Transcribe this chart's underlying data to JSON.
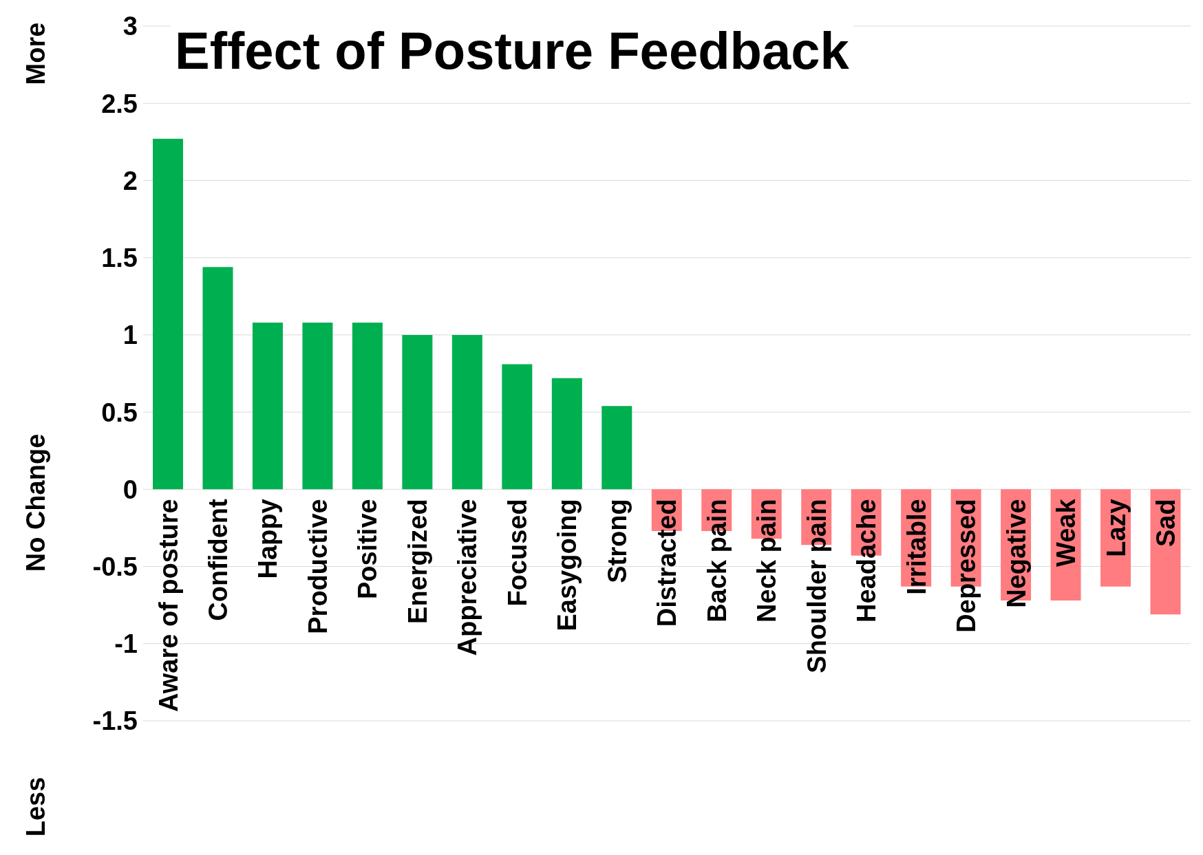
{
  "chart_data": {
    "type": "bar",
    "title": "Effect of Posture Feedback",
    "categories": [
      "Aware of posture",
      "Confident",
      "Happy",
      "Productive",
      "Positive",
      "Energized",
      "Appreciative",
      "Focused",
      "Easygoing",
      "Strong",
      "Distracted",
      "Back pain",
      "Neck pain",
      "Shoulder pain",
      "Headache",
      "Irritable",
      "Depressed",
      "Negative",
      "Weak",
      "Lazy",
      "Sad"
    ],
    "values": [
      2.27,
      1.44,
      1.08,
      1.08,
      1.08,
      1.0,
      1.0,
      0.81,
      0.72,
      0.54,
      -0.27,
      -0.27,
      -0.32,
      -0.36,
      -0.43,
      -0.63,
      -0.63,
      -0.72,
      -0.72,
      -0.63,
      -0.81
    ],
    "colors": [
      "#00b050",
      "#00b050",
      "#00b050",
      "#00b050",
      "#00b050",
      "#00b050",
      "#00b050",
      "#00b050",
      "#00b050",
      "#00b050",
      "#ff7c80",
      "#ff7c80",
      "#ff7c80",
      "#ff7c80",
      "#ff7c80",
      "#ff7c80",
      "#ff7c80",
      "#ff7c80",
      "#ff7c80",
      "#ff7c80",
      "#ff7c80"
    ],
    "ylim": [
      -1.5,
      3
    ],
    "yticks": [
      -1.5,
      -1,
      -0.5,
      0,
      0.5,
      1,
      1.5,
      2,
      2.5,
      3
    ],
    "grid": "y",
    "annotations": [
      "More",
      "No Change",
      "Less"
    ]
  }
}
